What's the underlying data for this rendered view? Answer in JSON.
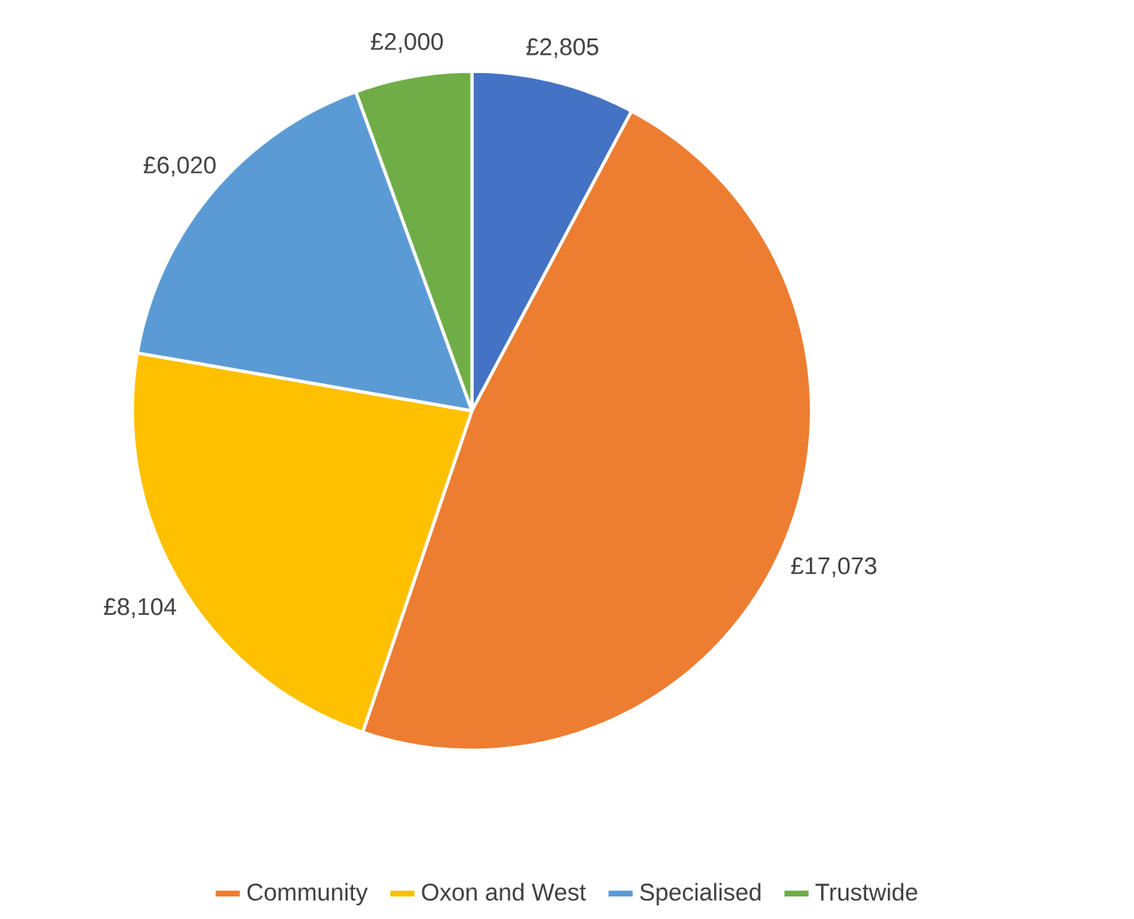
{
  "chart_data": {
    "type": "pie",
    "categories": [
      null,
      "Community",
      "Oxon and West",
      "Specialised",
      "Trustwide"
    ],
    "values": [
      2805,
      17073,
      8104,
      6020,
      2000
    ],
    "value_labels": [
      "£2,805",
      "£17,073",
      "£8,104",
      "£6,020",
      "£2,000"
    ],
    "colors": [
      "#4472c4",
      "#ed7d31",
      "#ffc000",
      "#5b9bd5",
      "#70ad47"
    ],
    "legend": "bottom"
  }
}
